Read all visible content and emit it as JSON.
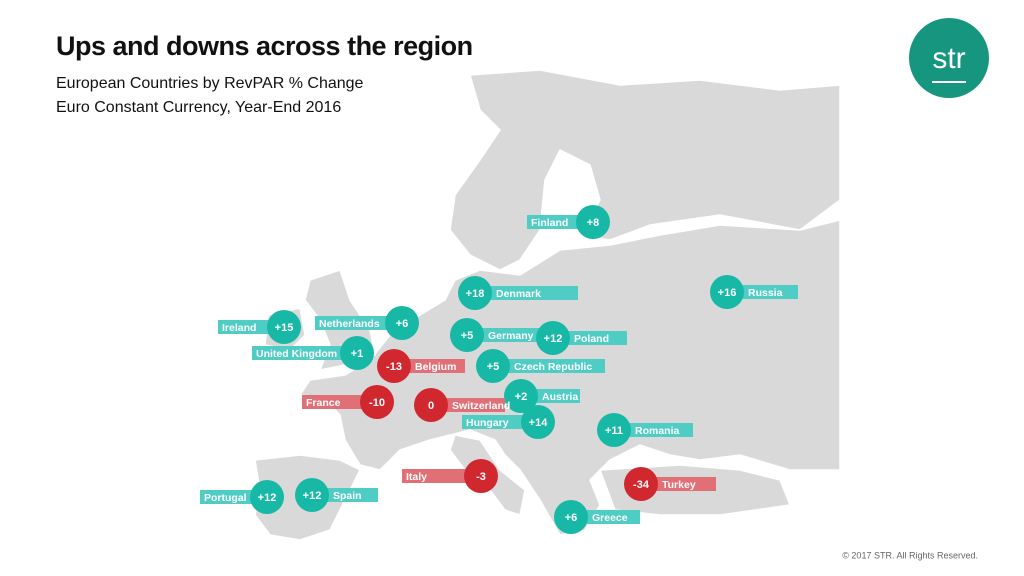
{
  "header": {
    "title": "Ups and downs across the region",
    "subtitle_lines": [
      "European Countries by RevPAR % Change",
      "Euro Constant Currency, Year-End 2016"
    ]
  },
  "logo": "str",
  "countries": [
    {
      "name": "Finland",
      "value": "+8",
      "color": "#17b8a6"
    },
    {
      "name": "Denmark",
      "value": "+18",
      "color": "#17b8a6"
    },
    {
      "name": "Russia",
      "value": "+16",
      "color": "#17b8a6"
    },
    {
      "name": "Ireland",
      "value": "+15",
      "color": "#17b8a6"
    },
    {
      "name": "Netherlands",
      "value": "+6",
      "color": "#17b8a6"
    },
    {
      "name": "United Kingdom",
      "value": "+1",
      "color": "#17b8a6"
    },
    {
      "name": "Germany",
      "value": "+5",
      "color": "#17b8a6"
    },
    {
      "name": "Poland",
      "value": "+12",
      "color": "#17b8a6"
    },
    {
      "name": "Belgium",
      "value": "-13",
      "color": "#d0282e"
    },
    {
      "name": "Czech Republic",
      "value": "+5",
      "color": "#17b8a6"
    },
    {
      "name": "France",
      "value": "-10",
      "color": "#d0282e"
    },
    {
      "name": "Austria",
      "value": "+2",
      "color": "#17b8a6"
    },
    {
      "name": "Switzerland",
      "value": "0",
      "color": "#d0282e"
    },
    {
      "name": "Hungary",
      "value": "+14",
      "color": "#17b8a6"
    },
    {
      "name": "Romania",
      "value": "+11",
      "color": "#17b8a6"
    },
    {
      "name": "Italy",
      "value": "-3",
      "color": "#d0282e"
    },
    {
      "name": "Turkey",
      "value": "-34",
      "color": "#d0282e"
    },
    {
      "name": "Portugal",
      "value": "+12",
      "color": "#17b8a6"
    },
    {
      "name": "Spain",
      "value": "+12",
      "color": "#17b8a6"
    },
    {
      "name": "Greece",
      "value": "+6",
      "color": "#17b8a6"
    }
  ],
  "footer": "© 2017 STR. All Rights Reserved."
}
